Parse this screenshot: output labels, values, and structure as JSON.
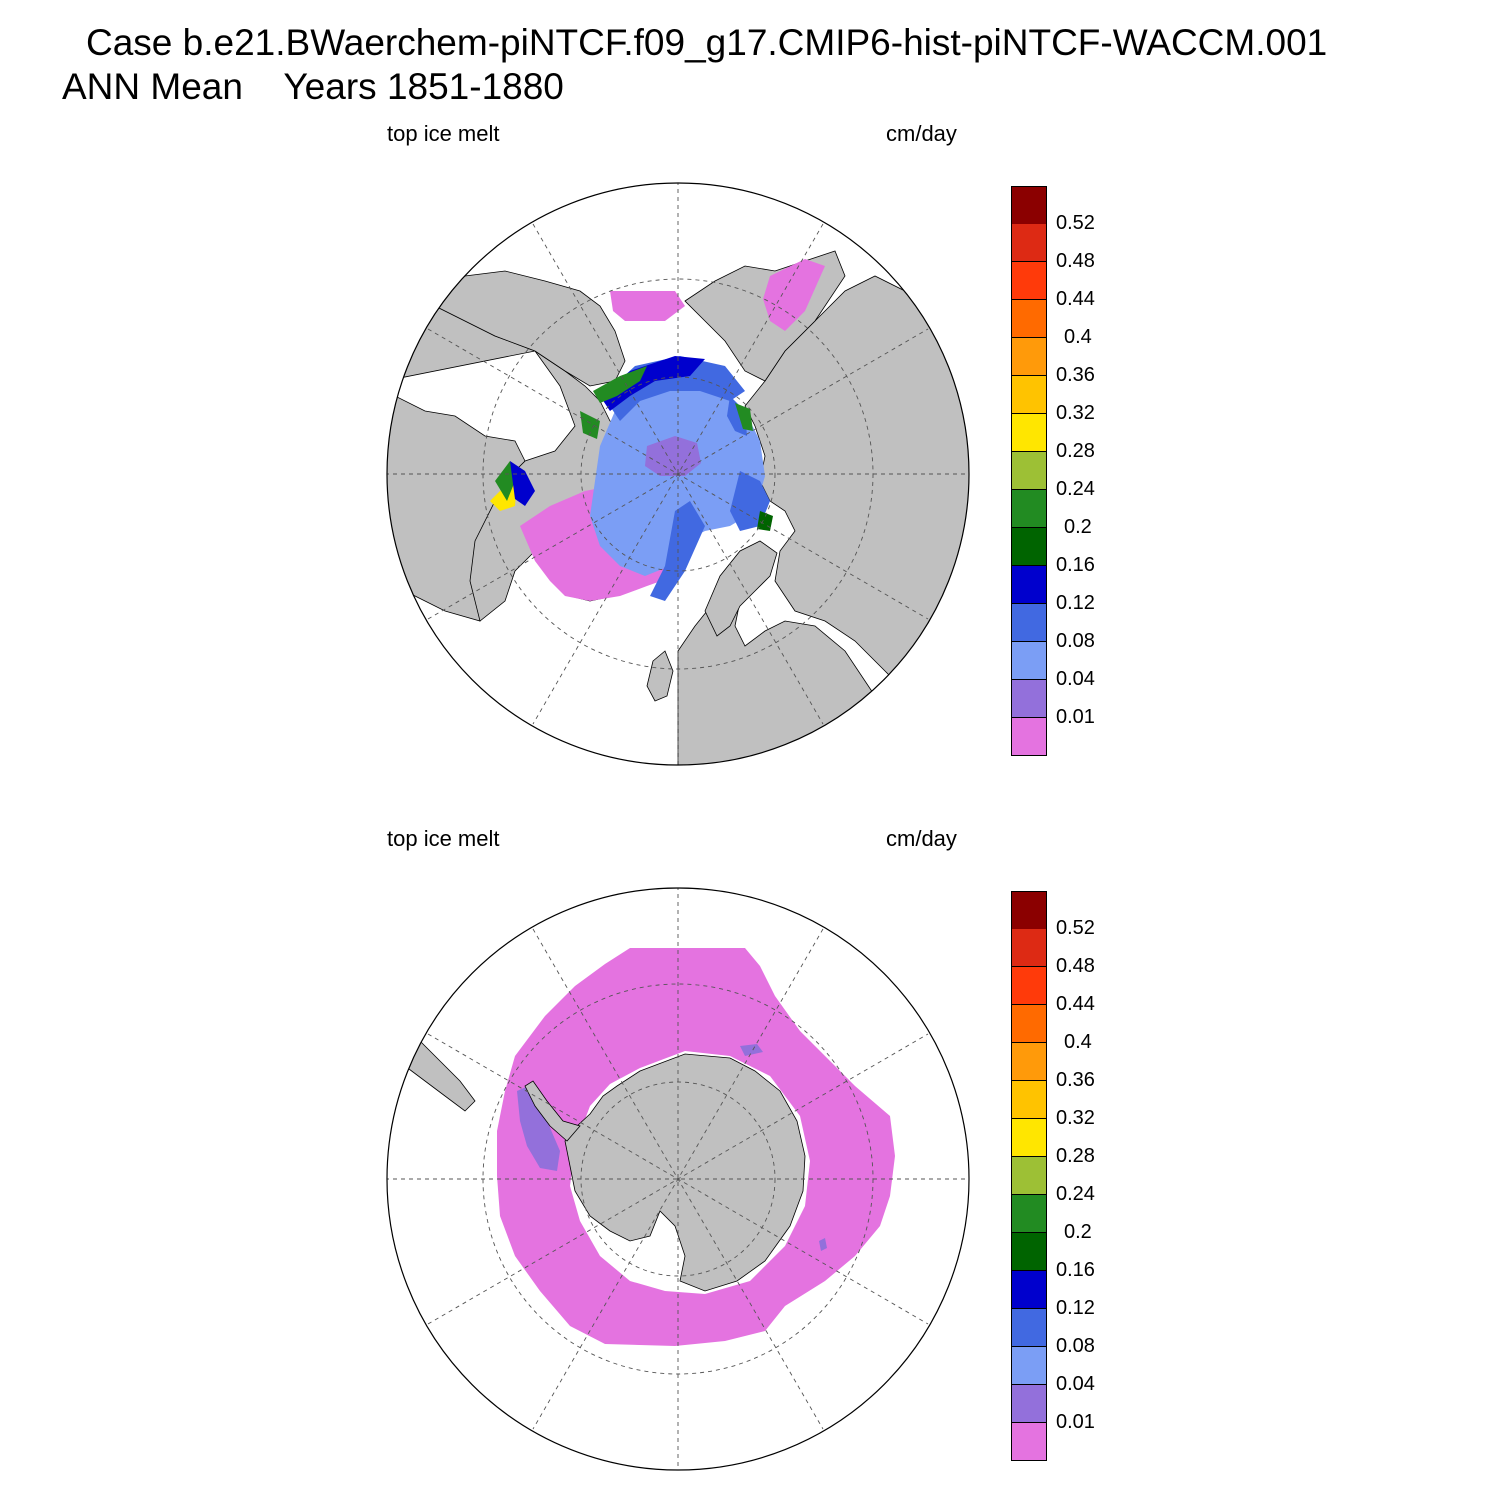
{
  "header": {
    "title_line1": "Case b.e21.BWaerchem-piNTCF.f09_g17.CMIP6-hist-piNTCF-WACCM.001",
    "title_line2": "ANN Mean    Years 1851-1880"
  },
  "panels": [
    {
      "variable_label": "top ice melt",
      "units_label": "cm/day",
      "hemisphere": "north",
      "projection": "polar stereographic"
    },
    {
      "variable_label": "top ice melt",
      "units_label": "cm/day",
      "hemisphere": "south",
      "projection": "polar stereographic"
    }
  ],
  "colorbar": {
    "tick_labels": [
      "0.52",
      "0.48",
      "0.44",
      "0.4",
      "0.36",
      "0.32",
      "0.28",
      "0.24",
      "0.2",
      "0.16",
      "0.12",
      "0.08",
      "0.04",
      "0.01"
    ],
    "colors_top_to_bottom": [
      "#8b0000",
      "#dd2a14",
      "#ff3a0a",
      "#ff6a00",
      "#ff9a0a",
      "#ffc300",
      "#ffe600",
      "#9dc035",
      "#228b22",
      "#006400",
      "#0000cd",
      "#4169e1",
      "#7b9ef5",
      "#9370db",
      "#e473e0"
    ]
  },
  "colors": {
    "land": "#c0c0c0",
    "ocean": "#ffffff",
    "coast": "#000000",
    "grid": "#555555"
  }
}
